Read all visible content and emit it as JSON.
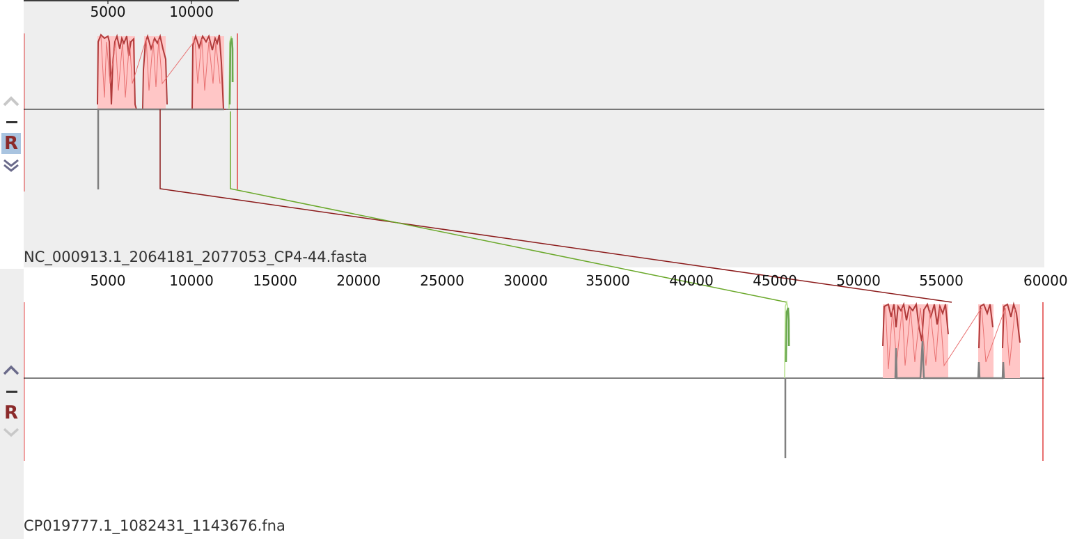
{
  "genomes": [
    {
      "name": "NC_000913.1_2064181_2077053_CP4-44.fasta",
      "ticks": [
        "5000",
        "10000"
      ],
      "tick_values": [
        5000,
        10000
      ],
      "controls": {
        "up": "chevron-up-icon",
        "minus": "minus-icon",
        "reverse": "R",
        "down": "chevron-down-icon"
      }
    },
    {
      "name": "CP019777.1_1082431_1143676.fna",
      "ticks": [
        "5000",
        "10000",
        "15000",
        "20000",
        "25000",
        "30000",
        "35000",
        "40000",
        "45000",
        "50000",
        "55000",
        "60000"
      ],
      "tick_values": [
        5000,
        10000,
        15000,
        20000,
        25000,
        30000,
        35000,
        40000,
        45000,
        50000,
        55000,
        60000
      ],
      "controls": {
        "up": "chevron-up-icon",
        "minus": "minus-icon",
        "reverse": "R",
        "down": "chevron-down-icon"
      }
    }
  ],
  "colors": {
    "block_red": "#b03a3a",
    "block_red_fill": "#ffc6c6",
    "block_green": "#6aa84f",
    "connector_red": "#8b1a1a",
    "connector_green": "#6aa82a",
    "panel_grey": "#eeeeee",
    "reverse_active_bg": "#a9c4e0",
    "reverse_color": "#8b2a2a"
  }
}
